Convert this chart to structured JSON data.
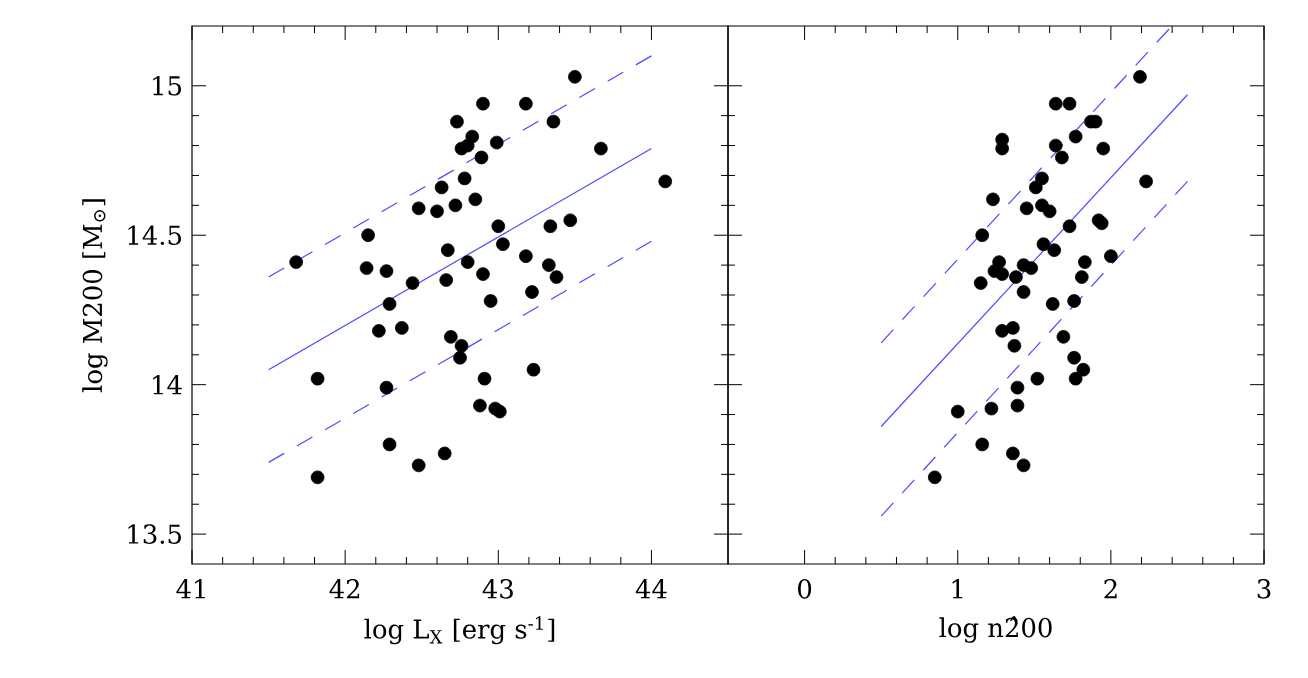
{
  "chart_data": [
    {
      "type": "scatter",
      "xlabel": "log L$_{X}$ [erg s$^{-1}$]",
      "ylabel": "log M200 [M$_{⊙}$]",
      "xlim": [
        41,
        44.5
      ],
      "ylim": [
        13.4,
        15.2
      ],
      "xticks": [
        41,
        42,
        43,
        44
      ],
      "yticks": [
        13.5,
        14,
        14.5,
        15
      ],
      "grid": false,
      "series": [
        {
          "marker": "circle",
          "color": "#000000",
          "x": [
            41.68,
            41.82,
            41.82,
            42.15,
            42.14,
            42.27,
            42.29,
            42.22,
            42.37,
            42.27,
            42.29,
            42.44,
            42.48,
            42.48,
            42.6,
            42.63,
            42.67,
            42.66,
            42.72,
            42.73,
            42.78,
            42.76,
            42.8,
            42.83,
            42.85,
            42.89,
            42.9,
            42.8,
            42.9,
            42.95,
            42.99,
            43.0,
            43.03,
            42.69,
            42.76,
            42.75,
            42.91,
            42.88,
            42.98,
            43.01,
            42.65,
            43.18,
            43.18,
            43.22,
            43.23,
            43.33,
            43.38,
            43.34,
            43.47,
            43.36,
            43.5,
            43.67,
            44.09
          ],
          "values": [
            14.41,
            14.02,
            13.69,
            14.5,
            14.39,
            14.38,
            14.27,
            14.18,
            14.19,
            13.99,
            13.8,
            14.34,
            13.73,
            14.59,
            14.58,
            14.66,
            14.45,
            14.35,
            14.6,
            14.88,
            14.69,
            14.79,
            14.8,
            14.83,
            14.62,
            14.76,
            14.94,
            14.41,
            14.37,
            14.28,
            14.81,
            14.53,
            14.47,
            14.16,
            14.13,
            14.09,
            14.02,
            13.93,
            13.92,
            13.91,
            13.77,
            14.94,
            14.43,
            14.31,
            14.05,
            14.4,
            14.36,
            14.53,
            14.55,
            14.88,
            15.03,
            14.79,
            14.68
          ]
        },
        {
          "type": "line",
          "line_style": "solid",
          "color": "#4a4aff",
          "x": [
            41.5,
            44.0
          ],
          "values": [
            14.05,
            14.79
          ]
        },
        {
          "type": "line",
          "line_style": "dashed",
          "color": "#4a4aff",
          "x": [
            41.5,
            44.0
          ],
          "values": [
            14.36,
            15.1
          ]
        },
        {
          "type": "line",
          "line_style": "dashed",
          "color": "#4a4aff",
          "x": [
            41.5,
            44.0
          ],
          "values": [
            13.74,
            14.48
          ]
        }
      ]
    },
    {
      "type": "scatter",
      "xlabel": "log n2̂00",
      "xlim": [
        -0.5,
        3
      ],
      "ylim": [
        13.4,
        15.2
      ],
      "xticks": [
        0,
        1,
        2,
        3
      ],
      "yticks": [
        13.5,
        14,
        14.5,
        15
      ],
      "tick_labels": "x",
      "grid": false,
      "series": [
        {
          "marker": "circle",
          "color": "#000000",
          "x": [
            0.85,
            1.0,
            1.16,
            1.22,
            1.16,
            1.15,
            1.23,
            1.27,
            1.24,
            1.29,
            1.29,
            1.29,
            1.29,
            1.36,
            1.36,
            1.37,
            1.38,
            1.39,
            1.39,
            1.43,
            1.43,
            1.43,
            1.48,
            1.45,
            1.51,
            1.55,
            1.55,
            1.6,
            1.52,
            1.56,
            1.63,
            1.62,
            1.64,
            1.73,
            1.64,
            1.68,
            1.77,
            1.73,
            1.69,
            1.76,
            1.76,
            1.77,
            1.82,
            1.81,
            1.83,
            1.87,
            1.9,
            1.92,
            1.95,
            1.94,
            2.0,
            2.19,
            2.23
          ],
          "values": [
            13.69,
            13.91,
            13.8,
            13.92,
            14.5,
            14.34,
            14.62,
            14.41,
            14.38,
            14.37,
            14.82,
            14.79,
            14.18,
            13.77,
            14.19,
            14.13,
            14.36,
            13.99,
            13.93,
            13.73,
            14.31,
            14.4,
            14.39,
            14.59,
            14.66,
            14.69,
            14.6,
            14.58,
            14.02,
            14.47,
            14.45,
            14.27,
            14.94,
            14.94,
            14.8,
            14.76,
            14.83,
            14.53,
            14.16,
            14.28,
            14.09,
            14.02,
            14.05,
            14.36,
            14.41,
            14.88,
            14.88,
            14.55,
            14.79,
            14.54,
            14.43,
            15.03,
            14.68
          ]
        },
        {
          "type": "line",
          "line_style": "solid",
          "color": "#4a4aff",
          "x": [
            0.5,
            2.5
          ],
          "values": [
            13.86,
            14.97
          ]
        },
        {
          "type": "line",
          "line_style": "dashed",
          "color": "#4a4aff",
          "x": [
            0.5,
            2.38
          ],
          "values": [
            14.14,
            15.19
          ]
        },
        {
          "type": "line",
          "line_style": "dashed",
          "color": "#4a4aff",
          "x": [
            0.5,
            2.5
          ],
          "values": [
            13.56,
            14.68
          ]
        }
      ]
    }
  ]
}
